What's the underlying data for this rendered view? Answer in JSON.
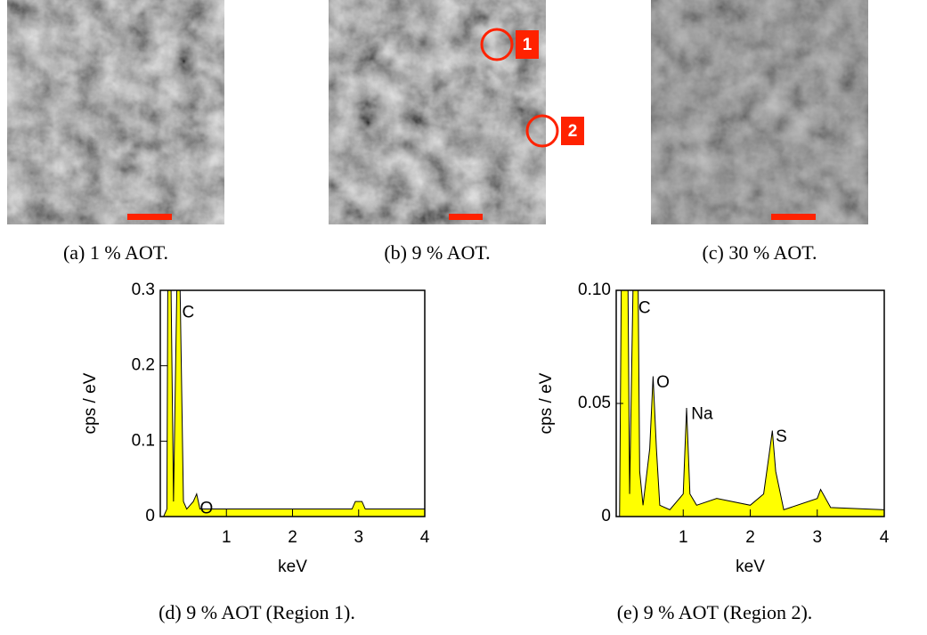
{
  "images": [
    {
      "caption": "(a) 1 % AOT.",
      "markers": []
    },
    {
      "caption": "(b) 9 % AOT.",
      "markers": [
        "1",
        "2"
      ]
    },
    {
      "caption": "(c) 30 % AOT.",
      "markers": []
    }
  ],
  "chart_data": [
    {
      "type": "spectrum",
      "caption": "(d) 9 % AOT (Region 1).",
      "xlabel": "keV",
      "ylabel": "cps / eV",
      "color": "#ffff00",
      "annotations": [
        "C",
        "O"
      ],
      "x": [
        0.05,
        0.1,
        0.12,
        0.15,
        0.2,
        0.25,
        0.3,
        0.35,
        0.4,
        0.5,
        0.55,
        0.6,
        0.7,
        0.8,
        1.0,
        1.2,
        1.5,
        2.0,
        2.5,
        2.9,
        2.95,
        3.05,
        3.1,
        3.3,
        3.6,
        4.0
      ],
      "values": [
        0,
        0.01,
        0.45,
        0.4,
        0.02,
        0.3,
        0.3,
        0.02,
        0.01,
        0.02,
        0.03,
        0.01,
        0.01,
        0.01,
        0.01,
        0.01,
        0.01,
        0.01,
        0.01,
        0.01,
        0.02,
        0.02,
        0.01,
        0.01,
        0.01,
        0.01
      ],
      "xlim": [
        0,
        4
      ],
      "xticks": [
        1,
        2,
        3,
        4
      ],
      "ylim": [
        0,
        0.3
      ],
      "yticks": [
        0,
        0.1,
        0.2,
        0.3
      ]
    },
    {
      "type": "spectrum",
      "caption": "(e) 9 % AOT (Region 2).",
      "xlabel": "keV",
      "ylabel": "cps / eV",
      "color": "#ffff00",
      "annotations": [
        "C",
        "O",
        "Na",
        "S"
      ],
      "x": [
        0.05,
        0.1,
        0.15,
        0.2,
        0.25,
        0.3,
        0.35,
        0.4,
        0.5,
        0.55,
        0.6,
        0.65,
        0.8,
        1.0,
        1.05,
        1.1,
        1.2,
        1.5,
        2.0,
        2.2,
        2.28,
        2.33,
        2.38,
        2.5,
        3.0,
        3.05,
        3.2,
        4.0
      ],
      "values": [
        0,
        0.2,
        0.2,
        0.01,
        0.1,
        0.2,
        0.02,
        0.005,
        0.03,
        0.062,
        0.03,
        0.005,
        0.003,
        0.01,
        0.048,
        0.01,
        0.005,
        0.008,
        0.005,
        0.01,
        0.027,
        0.038,
        0.02,
        0.003,
        0.008,
        0.012,
        0.004,
        0.003
      ],
      "xlim": [
        0,
        4
      ],
      "xticks": [
        1,
        2,
        3,
        4
      ],
      "ylim": [
        0,
        0.1
      ],
      "yticks": [
        0,
        0.05,
        {
          "value": 0.1,
          "label": "0.10"
        }
      ]
    }
  ]
}
